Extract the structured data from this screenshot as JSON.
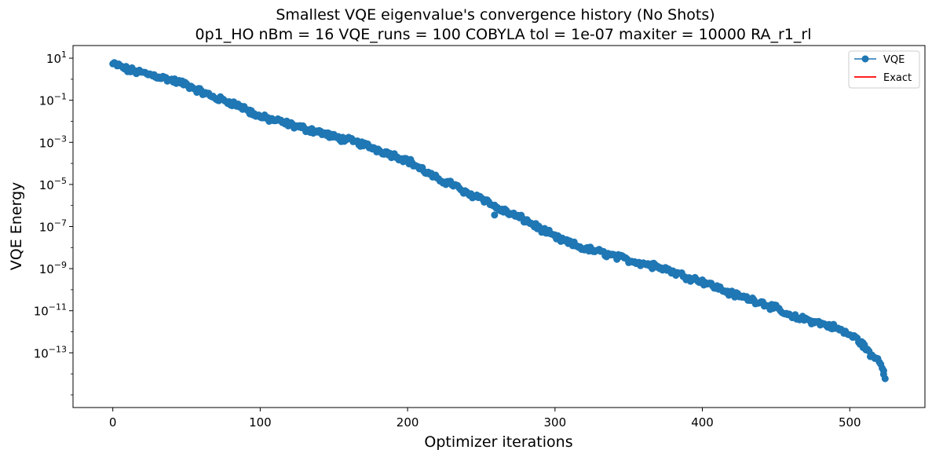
{
  "chart_data": {
    "type": "scatter",
    "title_line1": "Smallest VQE eigenvalue's convergence history (No Shots)",
    "title_line2": "0p1_HO    nBm = 16    VQE_runs = 100    COBYLA    tol = 1e-07    maxiter = 10000    RA_r1_rl",
    "xlabel": "Optimizer iterations",
    "ylabel": "VQE Energy",
    "xlim": [
      -27,
      551
    ],
    "ylim_log10": [
      -15.6,
      1.6
    ],
    "yscale": "log",
    "x_ticks": [
      0,
      100,
      200,
      300,
      400,
      500
    ],
    "x_tick_labels": [
      "0",
      "100",
      "200",
      "300",
      "400",
      "500"
    ],
    "y_ticks_exp": [
      1,
      -1,
      -3,
      -5,
      -7,
      -9,
      -11,
      -13
    ],
    "y_tick_labels": [
      {
        "base": "10",
        "exp": "1"
      },
      {
        "base": "10",
        "exp": "−1"
      },
      {
        "base": "10",
        "exp": "−3"
      },
      {
        "base": "10",
        "exp": "−5"
      },
      {
        "base": "10",
        "exp": "−7"
      },
      {
        "base": "10",
        "exp": "−9"
      },
      {
        "base": "10",
        "exp": "−11"
      },
      {
        "base": "10",
        "exp": "−13"
      }
    ],
    "legend_position": "top-right",
    "series": [
      {
        "name": "VQE",
        "color": "#1f77b4",
        "marker": "circle",
        "approx_log10_path": [
          [
            0,
            0.72
          ],
          [
            5,
            0.62
          ],
          [
            10,
            0.45
          ],
          [
            20,
            0.3
          ],
          [
            30,
            0.15
          ],
          [
            40,
            -0.05
          ],
          [
            50,
            -0.25
          ],
          [
            60,
            -0.6
          ],
          [
            70,
            -0.9
          ],
          [
            80,
            -1.1
          ],
          [
            90,
            -1.4
          ],
          [
            100,
            -1.8
          ],
          [
            110,
            -1.95
          ],
          [
            120,
            -2.15
          ],
          [
            130,
            -2.35
          ],
          [
            140,
            -2.5
          ],
          [
            150,
            -2.75
          ],
          [
            160,
            -2.9
          ],
          [
            170,
            -3.1
          ],
          [
            180,
            -3.35
          ],
          [
            190,
            -3.6
          ],
          [
            200,
            -3.85
          ],
          [
            210,
            -4.3
          ],
          [
            220,
            -4.75
          ],
          [
            230,
            -4.95
          ],
          [
            240,
            -5.45
          ],
          [
            250,
            -5.6
          ],
          [
            260,
            -6.1
          ],
          [
            270,
            -6.4
          ],
          [
            280,
            -6.7
          ],
          [
            290,
            -7.1
          ],
          [
            300,
            -7.5
          ],
          [
            310,
            -7.8
          ],
          [
            320,
            -8.05
          ],
          [
            330,
            -8.2
          ],
          [
            340,
            -8.4
          ],
          [
            350,
            -8.6
          ],
          [
            360,
            -8.75
          ],
          [
            370,
            -8.85
          ],
          [
            380,
            -9.15
          ],
          [
            390,
            -9.4
          ],
          [
            400,
            -9.6
          ],
          [
            410,
            -9.9
          ],
          [
            420,
            -10.2
          ],
          [
            430,
            -10.4
          ],
          [
            440,
            -10.6
          ],
          [
            450,
            -10.9
          ],
          [
            460,
            -11.3
          ],
          [
            470,
            -11.4
          ],
          [
            480,
            -11.6
          ],
          [
            490,
            -11.8
          ],
          [
            500,
            -12.15
          ],
          [
            505,
            -12.35
          ],
          [
            510,
            -12.7
          ],
          [
            515,
            -13.2
          ],
          [
            520,
            -13.3
          ],
          [
            524,
            -14.2
          ]
        ],
        "outliers": [
          [
            93,
            -1.65
          ],
          [
            259,
            -6.45
          ],
          [
            300,
            -7.45
          ],
          [
            366,
            -9.0
          ],
          [
            509,
            -12.53
          ],
          [
            523,
            -13.85
          ]
        ]
      },
      {
        "name": "Exact",
        "color": "#ff0000",
        "marker": "line"
      }
    ]
  }
}
